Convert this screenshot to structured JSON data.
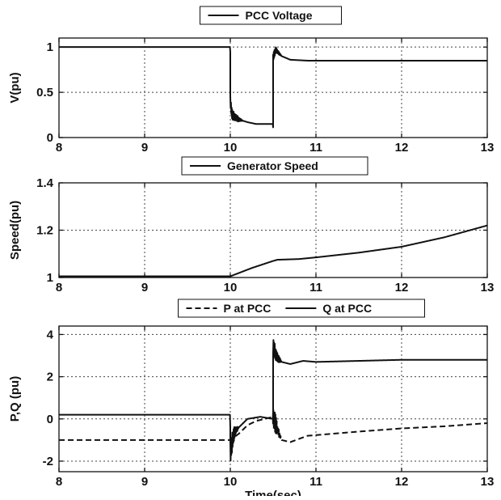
{
  "chart_data": [
    {
      "type": "line",
      "title": "",
      "xlabel": "",
      "ylabel": "V(pu)",
      "xlim": [
        8,
        13
      ],
      "ylim": [
        0,
        1.1
      ],
      "xticks": [
        8,
        9,
        10,
        11,
        12,
        13
      ],
      "yticks": [
        0,
        0.5,
        1
      ],
      "ytick_labels": [
        "0",
        "0.5",
        "1"
      ],
      "grid": true,
      "legend_position": "top-center",
      "series": [
        {
          "name": "PCC Voltage",
          "style": "solid",
          "x": [
            8,
            10,
            10,
            10.02,
            10.1,
            10.2,
            10.3,
            10.4,
            10.5,
            10.5,
            10.53,
            10.6,
            10.7,
            10.9,
            11.5,
            13
          ],
          "y": [
            1.0,
            1.0,
            0.4,
            0.25,
            0.2,
            0.17,
            0.15,
            0.15,
            0.15,
            0.88,
            0.97,
            0.9,
            0.86,
            0.85,
            0.85,
            0.85
          ],
          "oscillation": [
            [
              10.0,
              10.15,
              0.07
            ],
            [
              10.5,
              10.6,
              0.05
            ]
          ]
        }
      ]
    },
    {
      "type": "line",
      "title": "",
      "xlabel": "",
      "ylabel": "Speed(pu)",
      "xlim": [
        8,
        13
      ],
      "ylim": [
        1.0,
        1.4
      ],
      "xticks": [
        8,
        9,
        10,
        11,
        12,
        13
      ],
      "yticks": [
        1.0,
        1.2,
        1.4
      ],
      "ytick_labels": [
        "1",
        "1.2",
        "1.4"
      ],
      "grid": true,
      "legend_position": "top-center",
      "series": [
        {
          "name": "Generator Speed",
          "style": "solid",
          "x": [
            8,
            10,
            10.25,
            10.5,
            10.55,
            10.8,
            11,
            11.5,
            12,
            12.5,
            13
          ],
          "y": [
            1.005,
            1.005,
            1.04,
            1.07,
            1.075,
            1.078,
            1.085,
            1.105,
            1.13,
            1.17,
            1.22
          ],
          "oscillation": []
        }
      ]
    },
    {
      "type": "line",
      "title": "",
      "xlabel": "Time(sec)",
      "ylabel": "P,Q (pu)",
      "xlim": [
        8,
        13
      ],
      "ylim": [
        -2.5,
        4.4
      ],
      "xticks": [
        8,
        9,
        10,
        11,
        12,
        13
      ],
      "yticks": [
        -2,
        0,
        2,
        4
      ],
      "ytick_labels": [
        "-2",
        "0",
        "2",
        "4"
      ],
      "grid": true,
      "legend_position": "top-center",
      "series": [
        {
          "name": "P at PCC",
          "style": "dashed",
          "x": [
            8,
            10,
            10.1,
            10.2,
            10.3,
            10.5,
            10.55,
            10.6,
            10.7,
            10.9,
            11.5,
            12,
            12.5,
            13
          ],
          "y": [
            -1.0,
            -1.0,
            -0.7,
            -0.3,
            -0.1,
            0.1,
            -0.5,
            -1.0,
            -1.1,
            -0.8,
            -0.6,
            -0.45,
            -0.35,
            -0.2
          ],
          "oscillation": [
            [
              10.5,
              10.6,
              0.6
            ]
          ]
        },
        {
          "name": "Q at PCC",
          "style": "solid",
          "x": [
            8,
            10,
            10,
            10.05,
            10.2,
            10.35,
            10.5,
            10.5,
            10.53,
            10.6,
            10.7,
            10.85,
            11,
            11.5,
            12,
            13
          ],
          "y": [
            0.2,
            0.2,
            -1.5,
            -0.6,
            0.0,
            0.1,
            0.0,
            3.5,
            3.0,
            2.7,
            2.6,
            2.75,
            2.7,
            2.75,
            2.8,
            2.8
          ],
          "oscillation": [
            [
              10.0,
              10.1,
              0.6
            ],
            [
              10.5,
              10.6,
              0.5
            ]
          ]
        }
      ]
    }
  ]
}
